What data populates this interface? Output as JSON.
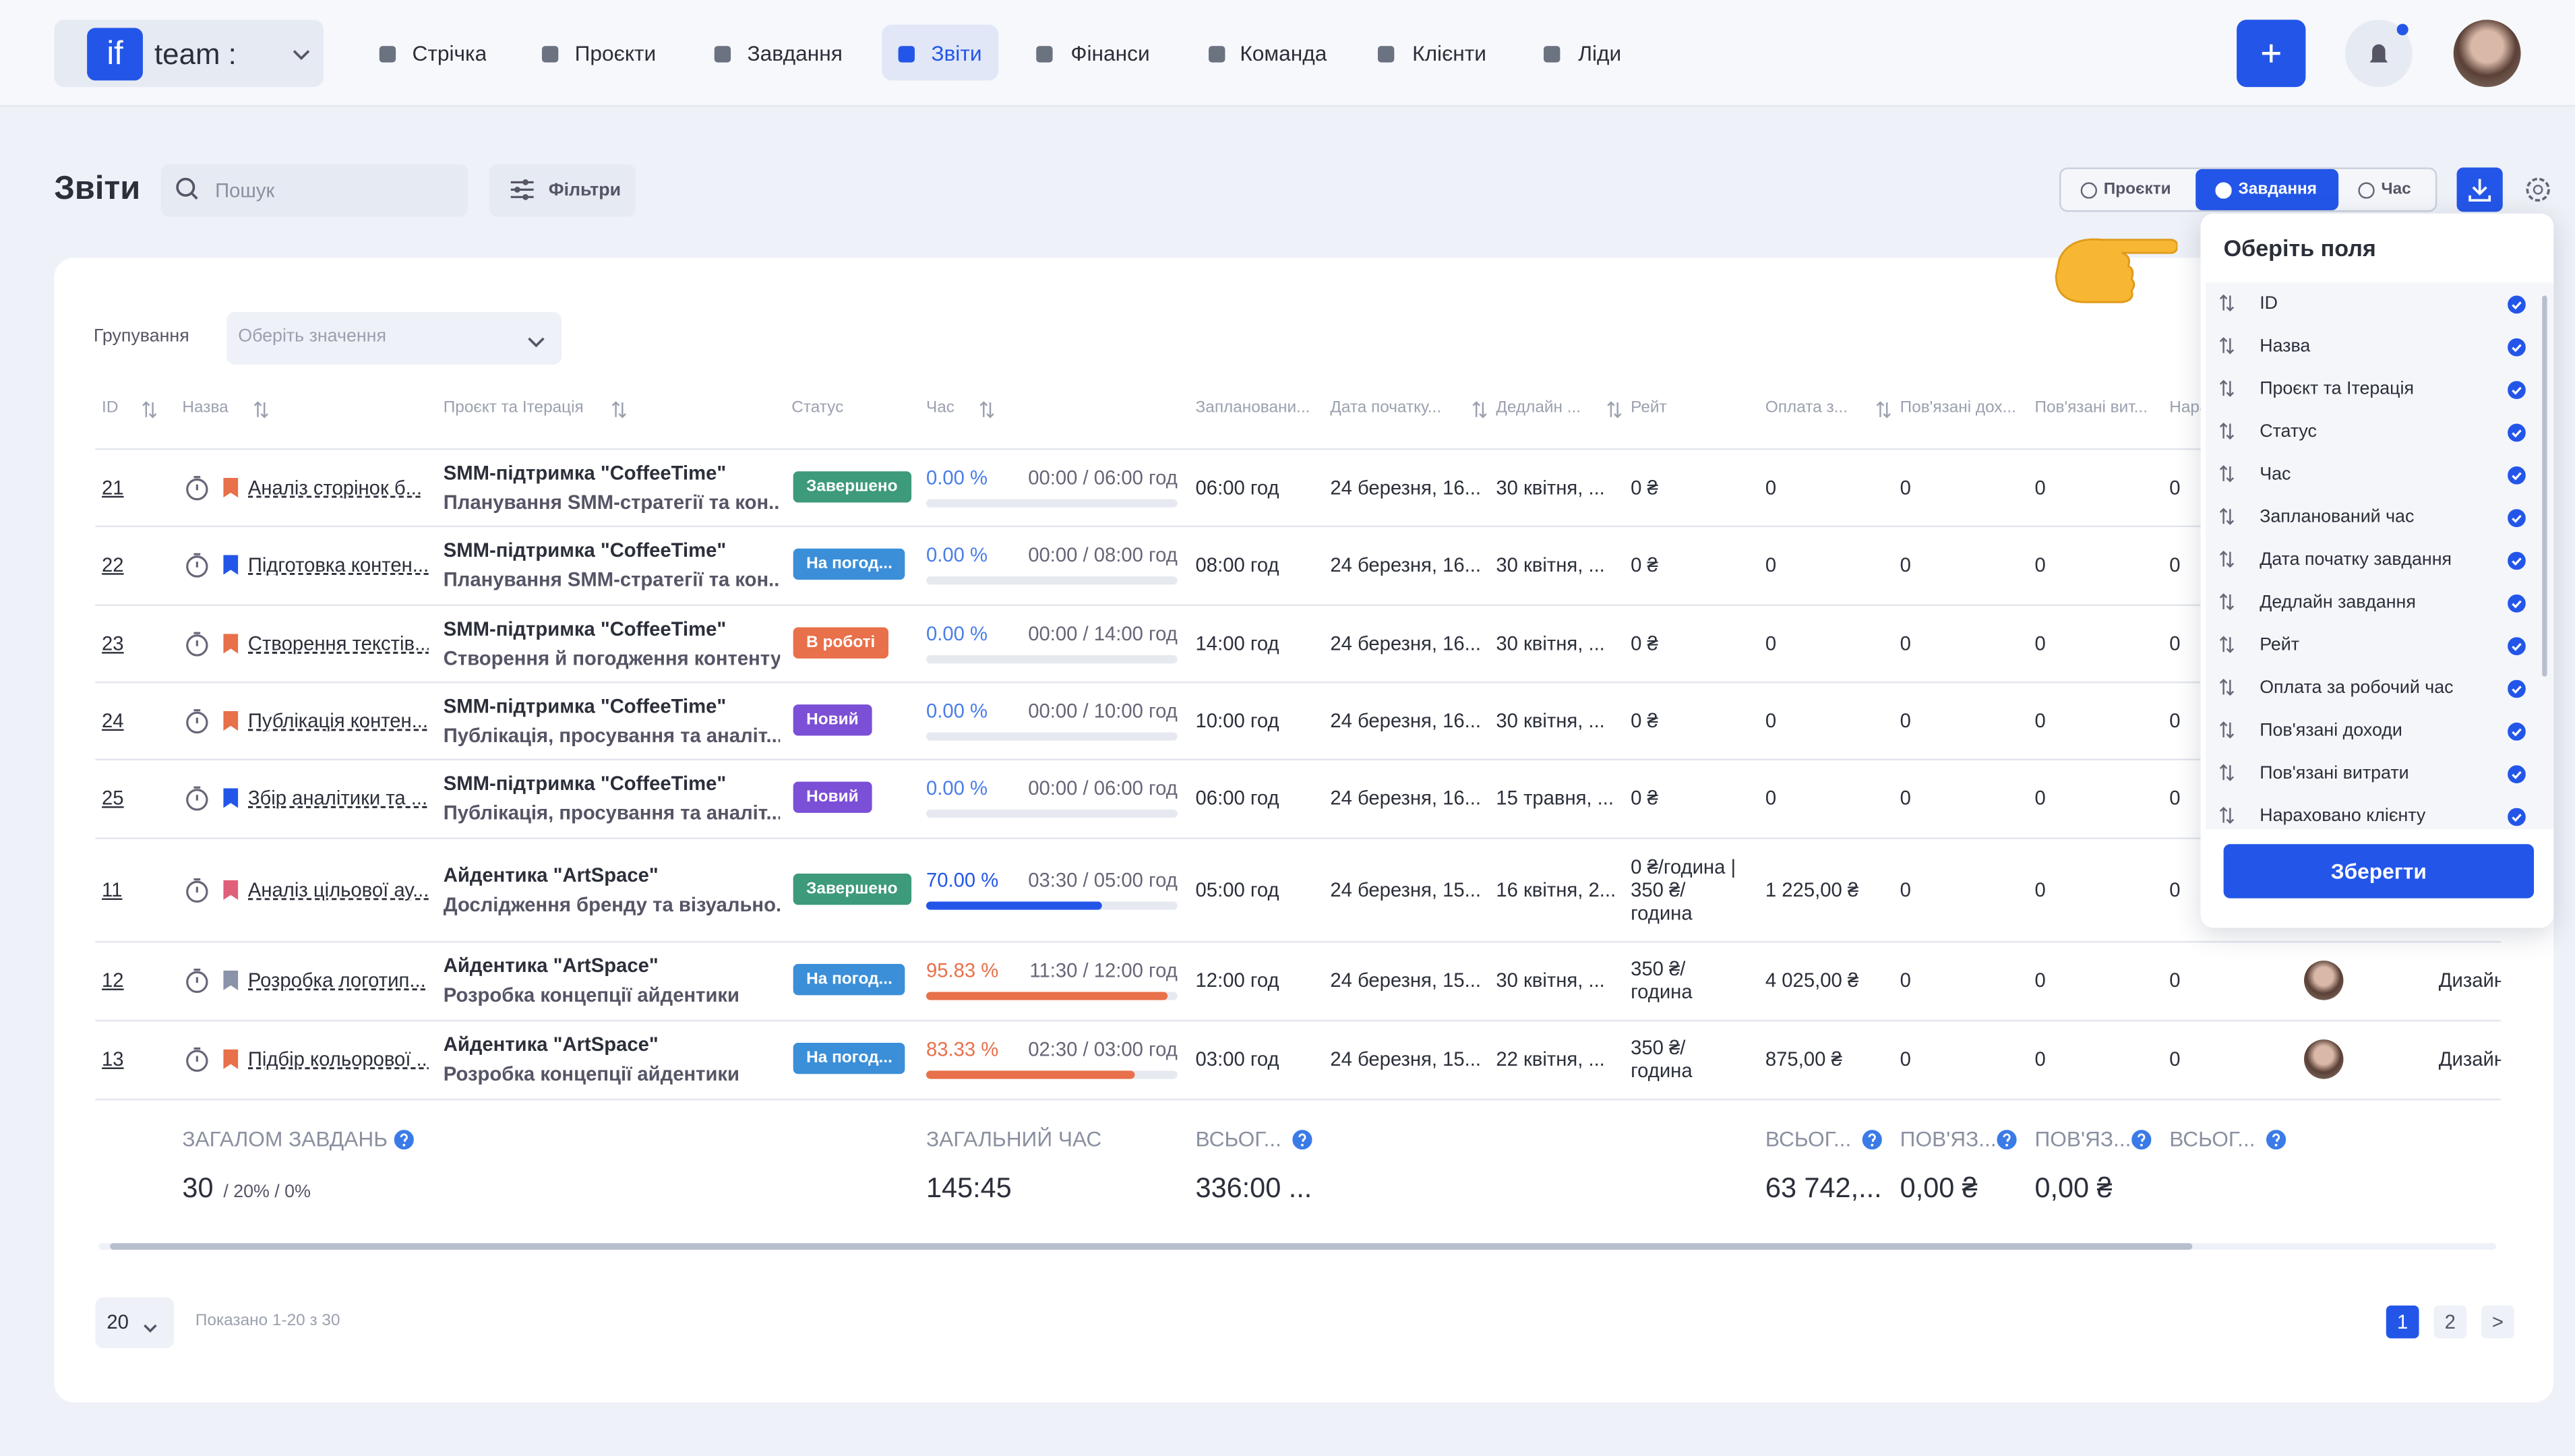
{
  "nav": {
    "logo": "if",
    "workspace": "team :",
    "items": [
      "Стрічка",
      "Проєкти",
      "Завдання",
      "Звіти",
      "Фінанси",
      "Команда",
      "Клієнти",
      "Ліди"
    ],
    "active": 3
  },
  "toolbar": {
    "title": "Звіти",
    "search_placeholder": "Пошук",
    "filters": "Фільтри",
    "tabs": [
      "Проєкти",
      "Завдання",
      "Час"
    ],
    "active_tab": 1
  },
  "grouping": {
    "label": "Групування",
    "placeholder": "Оберіть значення"
  },
  "table": {
    "columns": [
      "ID",
      "Назва",
      "Проєкт та Ітерація",
      "Статус",
      "Час",
      "Заплановани...",
      "Дата початку...",
      "Дедлайн ...",
      "Рейт",
      "Оплата з...",
      "Пов'язані дох...",
      "Пов'язані вит...",
      "Нараховано клієнту"
    ],
    "rows": [
      {
        "id": "21",
        "name": "Аналіз сторінок б...",
        "flag_color": "#e8704a",
        "project": "SMM-підтримка \"CoffeeTime\"",
        "iteration": "Планування SMM-стратегії та кон...",
        "status": "Завершено",
        "status_color": "#3d9a7a",
        "pct": "0.00 %",
        "progress": 0,
        "bar_color": "#4a7ee8",
        "time": "00:00 / 06:00 год",
        "planned": "06:00 год",
        "start": "24 березня, 16...",
        "deadline": "30 квітня, ...",
        "rate": "0 ₴",
        "pay": "0",
        "income": "0",
        "expense": "0",
        "charged": "0"
      },
      {
        "id": "22",
        "name": "Підготовка контен...",
        "flag_color": "#2356e8",
        "project": "SMM-підтримка \"CoffeeTime\"",
        "iteration": "Планування SMM-стратегії та кон...",
        "status": "На погод...",
        "status_color": "#3b8fd9",
        "pct": "0.00 %",
        "progress": 0,
        "bar_color": "#4a7ee8",
        "time": "00:00 / 08:00 год",
        "planned": "08:00 год",
        "start": "24 березня, 16...",
        "deadline": "30 квітня, ...",
        "rate": "0 ₴",
        "pay": "0",
        "income": "0",
        "expense": "0",
        "charged": "0"
      },
      {
        "id": "23",
        "name": "Створення текстів...",
        "flag_color": "#e8704a",
        "project": "SMM-підтримка \"CoffeeTime\"",
        "iteration": "Створення й погодження контенту",
        "status": "В роботі",
        "status_color": "#e8704a",
        "pct": "0.00 %",
        "progress": 0,
        "bar_color": "#4a7ee8",
        "time": "00:00 / 14:00 год",
        "planned": "14:00 год",
        "start": "24 березня, 16...",
        "deadline": "30 квітня, ...",
        "rate": "0 ₴",
        "pay": "0",
        "income": "0",
        "expense": "0",
        "charged": "0"
      },
      {
        "id": "24",
        "name": "Публікація контен...",
        "flag_color": "#e8704a",
        "project": "SMM-підтримка \"CoffeeTime\"",
        "iteration": "Публікація, просування та аналіт...",
        "status": "Новий",
        "status_color": "#7b4fd6",
        "pct": "0.00 %",
        "progress": 0,
        "bar_color": "#4a7ee8",
        "time": "00:00 / 10:00 год",
        "planned": "10:00 год",
        "start": "24 березня, 16...",
        "deadline": "30 квітня, ...",
        "rate": "0 ₴",
        "pay": "0",
        "income": "0",
        "expense": "0",
        "charged": "0"
      },
      {
        "id": "25",
        "name": "Збір аналітики та ...",
        "flag_color": "#2356e8",
        "project": "SMM-підтримка \"CoffeeTime\"",
        "iteration": "Публікація, просування та аналіт...",
        "status": "Новий",
        "status_color": "#7b4fd6",
        "pct": "0.00 %",
        "progress": 0,
        "bar_color": "#4a7ee8",
        "time": "00:00 / 06:00 год",
        "planned": "06:00 год",
        "start": "24 березня, 16...",
        "deadline": "15 травня, ...",
        "rate": "0 ₴",
        "pay": "0",
        "income": "0",
        "expense": "0",
        "charged": "0"
      },
      {
        "id": "11",
        "name": "Аналіз цільової ау...",
        "flag_color": "#e0607a",
        "project": "Айдентика \"ArtSpace\"",
        "iteration": "Дослідження бренду та візуально...",
        "status": "Завершено",
        "status_color": "#3d9a7a",
        "pct": "70.00 %",
        "progress": 70,
        "bar_color": "#2356e8",
        "time": "03:30 / 05:00 год",
        "planned": "05:00 год",
        "start": "24 березня, 15...",
        "deadline": "16 квітня, 2...",
        "rate": "0 ₴/година | 350 ₴/ година",
        "pay": "1 225,00 ₴",
        "income": "0",
        "expense": "0",
        "charged": "0"
      },
      {
        "id": "12",
        "name": "Розробка логотип...",
        "flag_color": "#8a93a8",
        "project": "Айдентика \"ArtSpace\"",
        "iteration": "Розробка концепції айдентики",
        "status": "На погод...",
        "status_color": "#3b8fd9",
        "pct": "95.83 %",
        "progress": 95.83,
        "bar_color": "#e8704a",
        "time": "11:30 / 12:00 год",
        "planned": "12:00 год",
        "start": "24 березня, 15...",
        "deadline": "30 квітня, ...",
        "rate": "350 ₴/ година",
        "pay": "4 025,00 ₴",
        "income": "0",
        "expense": "0",
        "charged": "0",
        "assignee": "Дизайн"
      },
      {
        "id": "13",
        "name": "Підбір кольорової ...",
        "flag_color": "#e8704a",
        "project": "Айдентика \"ArtSpace\"",
        "iteration": "Розробка концепції айдентики",
        "status": "На погод...",
        "status_color": "#3b8fd9",
        "pct": "83.33 %",
        "progress": 83.33,
        "bar_color": "#e8704a",
        "time": "02:30 / 03:00 год",
        "planned": "03:00 год",
        "start": "24 березня, 15...",
        "deadline": "22 квітня, ...",
        "rate": "350 ₴/ година",
        "pay": "875,00 ₴",
        "income": "0",
        "expense": "0",
        "charged": "0",
        "assignee": "Дизайн"
      }
    ],
    "totals": [
      {
        "label": "ЗАГАЛОМ ЗАВДАНЬ",
        "value": "30",
        "extra": "/ 20% / 0%"
      },
      {
        "label": "ЗАГАЛЬНИЙ ЧАС",
        "value": "145:45"
      },
      {
        "label": "ВСЬОГ...",
        "value": "336:00 ..."
      },
      {
        "label": "ВСЬОГ...",
        "value": "63 742,..."
      },
      {
        "label": "ПОВ'ЯЗ...",
        "value": "0,00 ₴"
      },
      {
        "label": "ПОВ'ЯЗ...",
        "value": "0,00 ₴"
      },
      {
        "label": "ВСЬОГ..."
      }
    ]
  },
  "pagination": {
    "page_size": "20",
    "summary": "Показано 1-20 з 30",
    "pages": [
      "1",
      "2"
    ],
    "next": ">",
    "active": 0
  },
  "fields_panel": {
    "title": "Оберіть поля",
    "fields": [
      "ID",
      "Назва",
      "Проєкт та Ітерація",
      "Статус",
      "Час",
      "Запланований час",
      "Дата початку завдання",
      "Дедлайн завдання",
      "Рейт",
      "Оплата за робочий час",
      "Пов'язані доходи",
      "Пов'язані витрати",
      "Нараховано клієнту"
    ],
    "save": "Зберегти"
  }
}
